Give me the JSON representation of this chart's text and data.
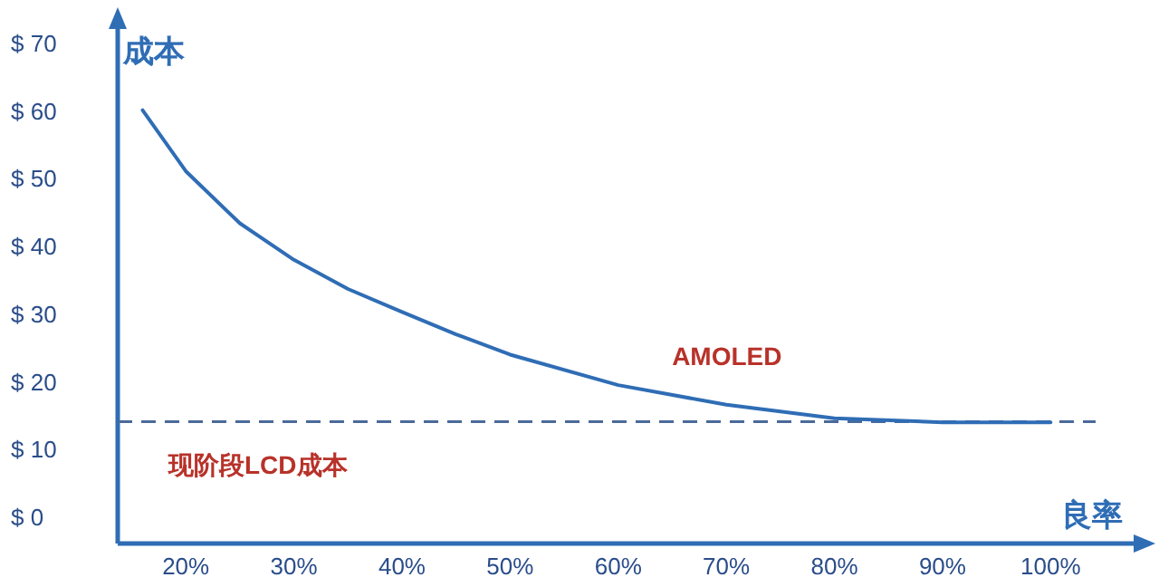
{
  "chart_data": {
    "type": "line",
    "xlabel": "良率",
    "ylabel": "成本",
    "x": [
      16,
      20,
      25,
      30,
      35,
      40,
      45,
      50,
      60,
      70,
      80,
      90,
      100
    ],
    "series": [
      {
        "name": "AMOLED",
        "color": "#2f6db5",
        "values": [
          60,
          51,
          43.3,
          37.9,
          33.6,
          30.2,
          26.9,
          23.9,
          19.4,
          16.5,
          14.5,
          13.9,
          13.9
        ]
      }
    ],
    "xlim": [
      13.7,
      105
    ],
    "ylim": [
      -4,
      72
    ],
    "xticks": [
      {
        "value": 20,
        "label": "20%"
      },
      {
        "value": 30,
        "label": "30%"
      },
      {
        "value": 40,
        "label": "40%"
      },
      {
        "value": 50,
        "label": "50%"
      },
      {
        "value": 60,
        "label": "60%"
      },
      {
        "value": 70,
        "label": "70%"
      },
      {
        "value": 80,
        "label": "80%"
      },
      {
        "value": 90,
        "label": "90%"
      },
      {
        "value": 100,
        "label": "100%"
      }
    ],
    "yticks": [
      {
        "value": 0,
        "label": "$ 0"
      },
      {
        "value": 10,
        "label": "$ 10"
      },
      {
        "value": 20,
        "label": "$ 20"
      },
      {
        "value": 30,
        "label": "$ 30"
      },
      {
        "value": 40,
        "label": "$ 40"
      },
      {
        "value": 50,
        "label": "$ 50"
      },
      {
        "value": 60,
        "label": "$ 60"
      },
      {
        "value": 70,
        "label": "$ 70"
      }
    ],
    "ref_lines": [
      {
        "axis": "y",
        "value": 14,
        "label": "现阶段LCD成本",
        "color": "#4a6a9a",
        "line_style": "dashed"
      }
    ]
  }
}
